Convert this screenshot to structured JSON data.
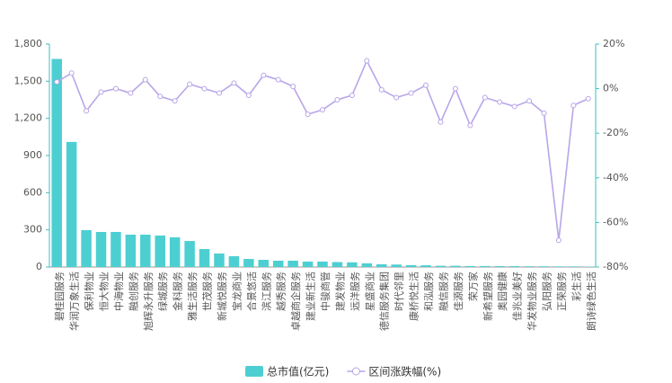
{
  "chart_data": {
    "type": "bar-line",
    "categories": [
      "碧桂园服务",
      "华润万象生活",
      "保利物业",
      "恒大物业",
      "中海物业",
      "融创服务",
      "旭辉永升服务",
      "绿城服务",
      "金科服务",
      "雅生活服务",
      "世茂服务",
      "新城悦服务",
      "宝龙商业",
      "合景悠活",
      "滨江服务",
      "越秀服务",
      "卓越商企服务",
      "建业新生活",
      "中骏商管",
      "建发物业",
      "远洋服务",
      "星盛商业",
      "德信服务集团",
      "时代邻里",
      "康桥悦生活",
      "和泓服务",
      "融信服务",
      "佳源服务",
      "荣万家",
      "新希望服务",
      "奥园健康",
      "佳兆业美好",
      "华发物业服务",
      "弘阳服务",
      "正荣服务",
      "彩生活",
      "朗诗绿色生活"
    ],
    "series": [
      {
        "name": "总市值(亿元)",
        "color": "#4dcfd2",
        "type": "bar",
        "values": [
          1680,
          1010,
          298,
          283,
          283,
          261,
          261,
          254,
          240,
          210,
          145,
          109,
          87,
          65,
          58,
          51,
          51,
          44,
          44,
          40,
          38,
          30,
          22,
          20,
          15,
          14,
          10,
          10,
          8,
          8,
          7,
          7,
          6,
          6,
          5,
          5,
          3
        ]
      },
      {
        "name": "区间涨跌幅(%)",
        "color": "#b9a5e8",
        "type": "line",
        "axis": "y2",
        "values": [
          3,
          7,
          -10,
          -1.5,
          0,
          -2,
          4,
          -3.5,
          -5.5,
          2,
          0,
          -2,
          2.5,
          -3,
          6,
          4,
          1,
          -11.5,
          -9.5,
          -5,
          -3,
          12.5,
          -0.5,
          -4,
          -2,
          1.5,
          -15,
          0,
          -16.5,
          -4,
          -6,
          -8,
          -5.5,
          -11,
          -68,
          -7.5,
          -4.5
        ]
      }
    ],
    "ylim": [
      0,
      1800
    ],
    "yticks": [
      0,
      300,
      600,
      900,
      {
        "value": 1200,
        "label": "1,200"
      },
      {
        "value": 1500,
        "label": "1,500"
      },
      {
        "value": 1800,
        "label": "1,800"
      }
    ],
    "y2lim": [
      -80,
      20
    ],
    "y2ticks": [
      {
        "value": -80,
        "label": "-80%"
      },
      {
        "value": -60,
        "label": "-60%"
      },
      {
        "value": -40,
        "label": "-40%"
      },
      {
        "value": -20,
        "label": "-20%"
      },
      {
        "value": 0,
        "label": "0%"
      },
      {
        "value": 20,
        "label": "20%"
      }
    ],
    "legend": "bottom"
  }
}
